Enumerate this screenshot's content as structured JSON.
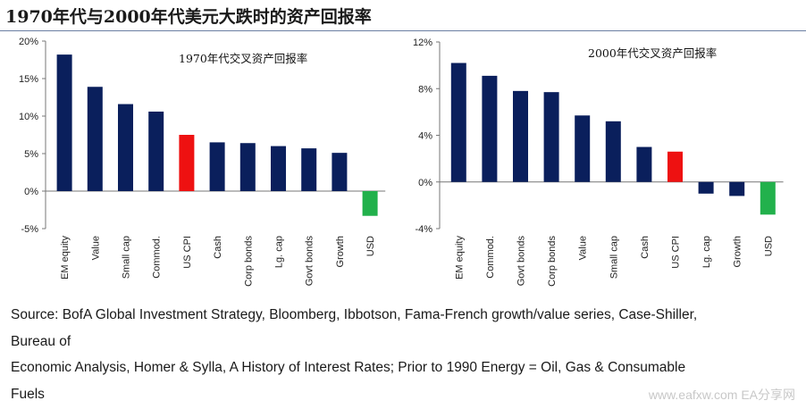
{
  "page": {
    "title": "1970年代与2000年代美元大跌时的资产回报率",
    "source_lines": [
      "Source: BofA Global Investment Strategy, Bloomberg, Ibbotson, Fama-French growth/value series, Case-Shiller,",
      "Bureau of",
      "Economic Analysis, Homer & Sylla, A History of Interest Rates; Prior to 1990 Energy = Oil, Gas & Consumable",
      "Fuels"
    ],
    "watermark": "www.eafxw.com  EA分享网"
  },
  "colors": {
    "bar": "#0a1f5c",
    "highlight": "#ee1111",
    "negative_usd": "#22b14c"
  },
  "chart_data": [
    {
      "type": "bar",
      "title": "1970年代交叉资产回报率",
      "categories": [
        "EM equity",
        "Value",
        "Small cap",
        "Commod.",
        "US CPI",
        "Cash",
        "Corp bonds",
        "Lg. cap",
        "Govt bonds",
        "Growth",
        "USD"
      ],
      "values": [
        18.2,
        13.9,
        11.6,
        10.6,
        7.5,
        6.5,
        6.4,
        6.0,
        5.7,
        5.1,
        -3.3
      ],
      "bar_colors": [
        "#0a1f5c",
        "#0a1f5c",
        "#0a1f5c",
        "#0a1f5c",
        "#ee1111",
        "#0a1f5c",
        "#0a1f5c",
        "#0a1f5c",
        "#0a1f5c",
        "#0a1f5c",
        "#22b14c"
      ],
      "y_ticks": [
        "20%",
        "15%",
        "10%",
        "5%",
        "0%",
        "-5%"
      ],
      "ylim": [
        -5,
        20
      ],
      "grid": false
    },
    {
      "type": "bar",
      "title": "2000年代交叉资产回报率",
      "categories": [
        "EM equity",
        "Commod.",
        "Govt bonds",
        "Corp bonds",
        "Value",
        "Small cap",
        "Cash",
        "US CPI",
        "Lg. cap",
        "Growth",
        "USD"
      ],
      "values": [
        10.2,
        9.1,
        7.8,
        7.7,
        5.7,
        5.2,
        3.0,
        2.6,
        -1.0,
        -1.2,
        -2.8
      ],
      "bar_colors": [
        "#0a1f5c",
        "#0a1f5c",
        "#0a1f5c",
        "#0a1f5c",
        "#0a1f5c",
        "#0a1f5c",
        "#0a1f5c",
        "#ee1111",
        "#0a1f5c",
        "#0a1f5c",
        "#22b14c"
      ],
      "y_ticks": [
        "12%",
        "8%",
        "4%",
        "0%",
        "-4%"
      ],
      "ylim": [
        -4,
        12
      ],
      "grid": false
    }
  ]
}
